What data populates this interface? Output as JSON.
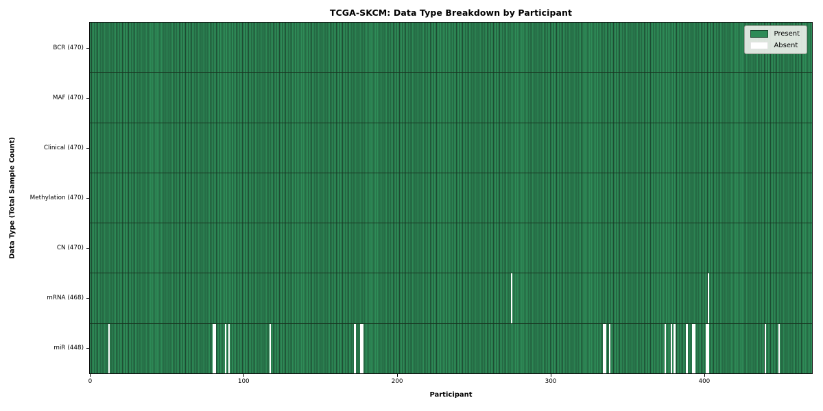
{
  "chart_data": {
    "type": "heatmap",
    "title": "TCGA-SKCM: Data Type Breakdown by Participant",
    "xlabel": "Participant",
    "ylabel": "Data Type (Total Sample Count)",
    "n_participants": 470,
    "xlim": [
      0,
      470
    ],
    "x_ticks": [
      "0",
      "100",
      "200",
      "300",
      "400"
    ],
    "x_tick_values": [
      0,
      100,
      200,
      300,
      400
    ],
    "grid": false,
    "legend": {
      "position": "upper right",
      "entries": [
        {
          "label": "Present",
          "color": "#2e8b57",
          "edge": "#1c4a31"
        },
        {
          "label": "Absent",
          "color": "#ffffff",
          "edge": "#e3e3e3"
        }
      ]
    },
    "rows": [
      {
        "label": "BCR (470)",
        "data_type": "BCR",
        "total": 470,
        "absent": []
      },
      {
        "label": "MAF (470)",
        "data_type": "MAF",
        "total": 470,
        "absent": []
      },
      {
        "label": "Clinical (470)",
        "data_type": "Clinical",
        "total": 470,
        "absent": []
      },
      {
        "label": "Methylation (470)",
        "data_type": "Methylation",
        "total": 470,
        "absent": []
      },
      {
        "label": "CN (470)",
        "data_type": "CN",
        "total": 470,
        "absent": []
      },
      {
        "label": "mRNA (468)",
        "data_type": "mRNA",
        "total": 468,
        "absent": [
          274,
          402
        ]
      },
      {
        "label": "miR (448)",
        "data_type": "miR",
        "total": 448,
        "absent": [
          12,
          80,
          81,
          88,
          90,
          117,
          172,
          176,
          177,
          334,
          335,
          338,
          374,
          378,
          380,
          388,
          392,
          393,
          401,
          402,
          439,
          448
        ]
      }
    ]
  },
  "colors": {
    "present": "#2e8b57",
    "bar_edge": "#1c4a31",
    "absent": "#ffffff",
    "row_divider": "#17331f",
    "plot_border": "#0e0e0e",
    "legend_bg": "#eceee9",
    "legend_border": "#9ba197"
  }
}
